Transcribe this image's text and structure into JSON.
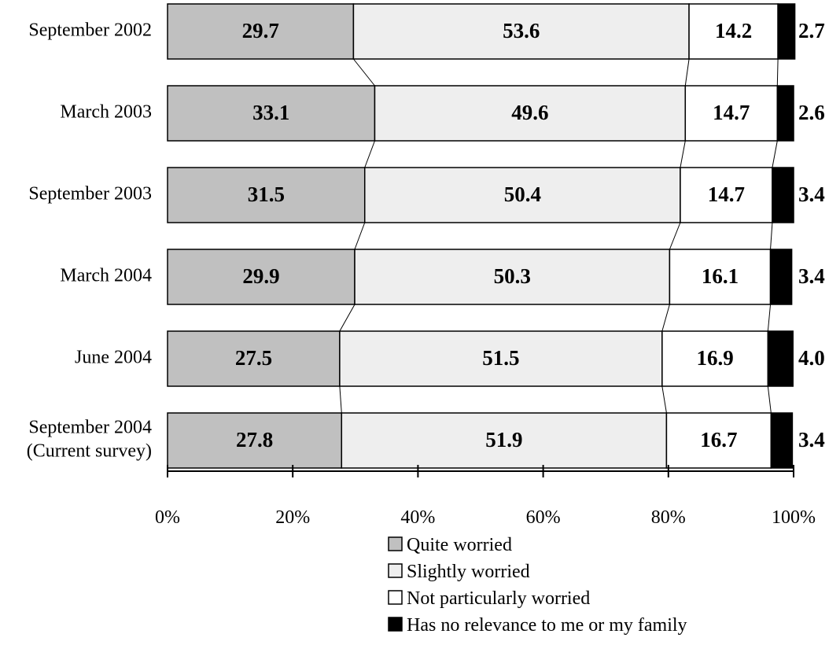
{
  "chart_data": {
    "type": "bar",
    "orientation": "horizontal",
    "stacked": true,
    "percent": true,
    "categories": [
      [
        "September 2002"
      ],
      [
        "March 2003"
      ],
      [
        "September 2003"
      ],
      [
        "March 2004"
      ],
      [
        "June 2004"
      ],
      [
        "September 2004",
        "(Current survey)"
      ]
    ],
    "series": [
      {
        "name": "Quite worried",
        "color": "#c0c0c0",
        "values": [
          29.7,
          33.1,
          31.5,
          29.9,
          27.5,
          27.8
        ]
      },
      {
        "name": "Slightly worried",
        "color": "#eeeeee",
        "values": [
          53.6,
          49.6,
          50.4,
          50.3,
          51.5,
          51.9
        ]
      },
      {
        "name": "Not particularly worried",
        "color": "#ffffff",
        "values": [
          14.2,
          14.7,
          14.7,
          16.1,
          16.9,
          16.7
        ]
      },
      {
        "name": "Has no relevance to me or my family",
        "color": "#000000",
        "values": [
          2.7,
          2.6,
          3.4,
          3.4,
          4.0,
          3.4
        ]
      }
    ],
    "xlim": [
      0,
      100
    ],
    "xticks": [
      "0%",
      "20%",
      "40%",
      "60%",
      "80%",
      "100%"
    ],
    "connector_lines": true,
    "legend_position": "bottom",
    "grid": false
  }
}
